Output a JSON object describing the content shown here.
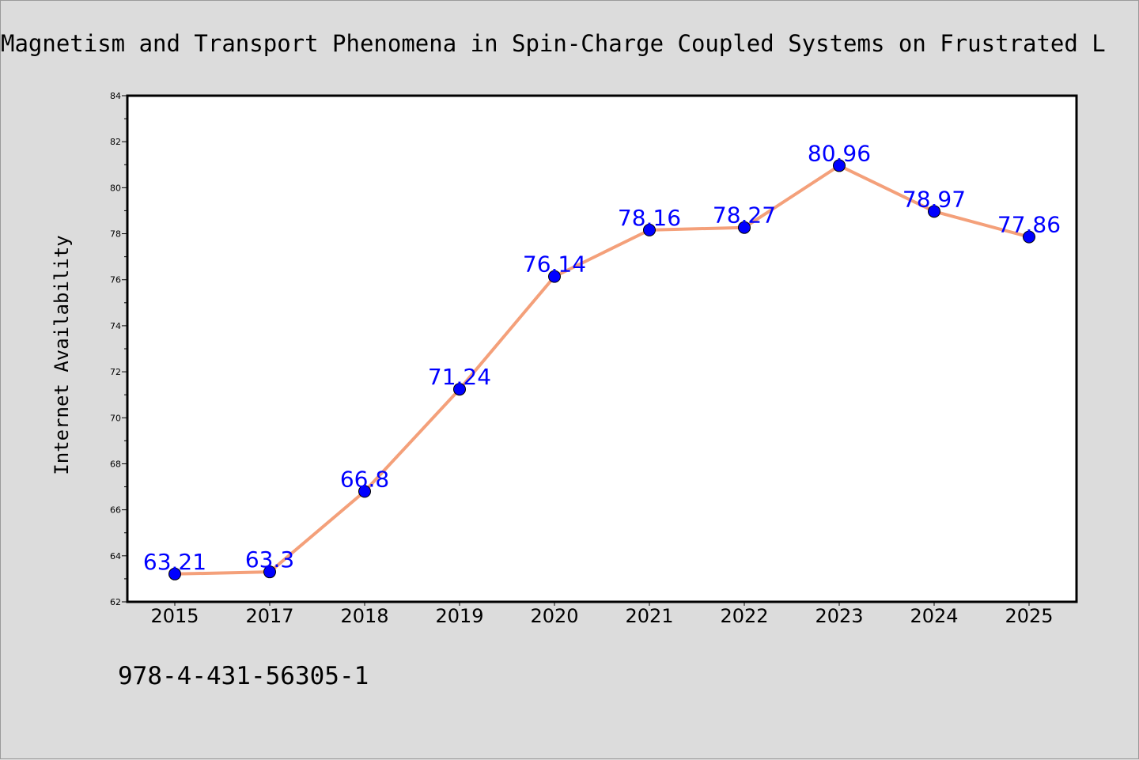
{
  "chart_data": {
    "type": "line",
    "title": "Magnetism and Transport Phenomena in Spin-Charge Coupled Systems on Frustrated L",
    "xlabel": "",
    "ylabel": "Internet Availability",
    "categories": [
      "2015",
      "2017",
      "2018",
      "2019",
      "2020",
      "2021",
      "2022",
      "2023",
      "2024",
      "2025"
    ],
    "series": [
      {
        "values": [
          63.21,
          63.3,
          66.8,
          71.24,
          76.14,
          78.16,
          78.27,
          80.96,
          78.97,
          77.86
        ],
        "labels": [
          "63.21",
          "63.3",
          "66.8",
          "71.24",
          "76.14",
          "78.16",
          "78.27",
          "80.96",
          "78.97",
          "77.86"
        ]
      }
    ],
    "ylim": [
      62,
      84
    ],
    "yticks": [
      62,
      64,
      66,
      68,
      70,
      72,
      74,
      76,
      78,
      80,
      82,
      84
    ],
    "grid": false,
    "legend": "none",
    "colors": {
      "line": "#f4a07a",
      "marker": "#0000ff",
      "data_label": "#0000ff",
      "plot_background": "#ffffff",
      "figure_background": "#dcdcdc"
    }
  },
  "footer_text": "978-4-431-56305-1"
}
